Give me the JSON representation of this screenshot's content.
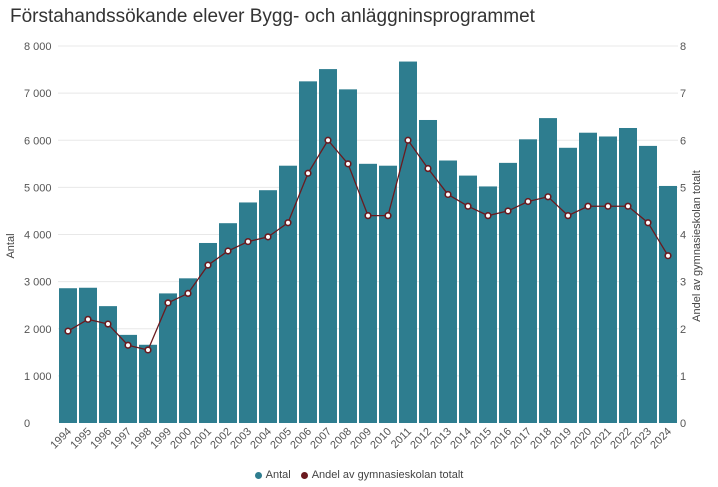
{
  "colors": {
    "bar": "#2e7d8f",
    "line": "#6b1a1f",
    "grid": "#e8e8e8"
  },
  "chart_data": {
    "type": "bar",
    "title": "Förstahandssökande elever Bygg- och anläggninsprogrammet",
    "ylabel": "Antal",
    "y2label": "Andel av gymnasieskolan totalt",
    "ylim": [
      0,
      8000
    ],
    "y2lim": [
      0,
      8
    ],
    "yticks": [
      "0",
      "1 000",
      "2 000",
      "3 000",
      "4 000",
      "5 000",
      "6 000",
      "7 000",
      "8 000"
    ],
    "y2ticks": [
      "0",
      "1",
      "2",
      "3",
      "4",
      "5",
      "6",
      "7",
      "8"
    ],
    "categories": [
      "1994",
      "1995",
      "1996",
      "1997",
      "1998",
      "1999",
      "2000",
      "2001",
      "2002",
      "2003",
      "2004",
      "2005",
      "2006",
      "2007",
      "2008",
      "2009",
      "2010",
      "2011",
      "2012",
      "2013",
      "2014",
      "2015",
      "2016",
      "2017",
      "2018",
      "2019",
      "2020",
      "2021",
      "2022",
      "2023",
      "2024"
    ],
    "series": [
      {
        "name": "Antal",
        "type": "bar",
        "axis": "left",
        "values": [
          2860,
          2870,
          2480,
          1870,
          1660,
          2750,
          3070,
          3820,
          4240,
          4680,
          4940,
          5460,
          7250,
          7510,
          7080,
          5500,
          5460,
          7670,
          6430,
          5570,
          5250,
          5020,
          5520,
          6020,
          6470,
          5840,
          6160,
          6080,
          6260,
          5880,
          5030
        ]
      },
      {
        "name": "Andel av gymnasieskolan totalt",
        "type": "line",
        "axis": "right",
        "values": [
          1.95,
          2.2,
          2.1,
          1.65,
          1.55,
          2.55,
          2.75,
          3.35,
          3.65,
          3.85,
          3.95,
          4.25,
          5.3,
          6.0,
          5.5,
          4.4,
          4.4,
          6.0,
          5.4,
          4.85,
          4.6,
          4.4,
          4.5,
          4.7,
          4.8,
          4.4,
          4.6,
          4.6,
          4.6,
          4.25,
          3.55
        ]
      }
    ],
    "legend": "bottom",
    "grid": true
  }
}
